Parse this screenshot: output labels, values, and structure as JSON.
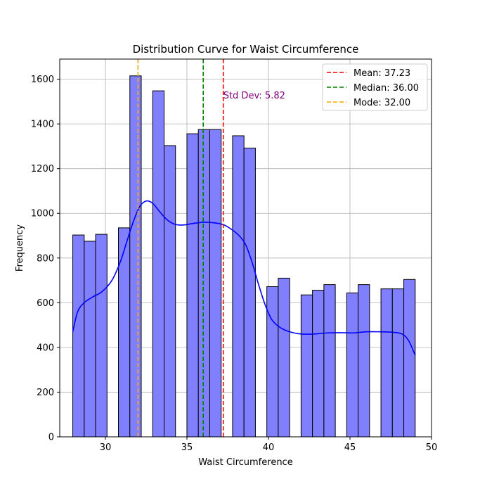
{
  "chart_data": {
    "type": "bar",
    "title": "Distribution Curve for Waist Circumference",
    "xlabel": "Waist Circumference",
    "ylabel": "Frequency",
    "xlim": [
      27.2,
      50.0
    ],
    "ylim": [
      0,
      1690
    ],
    "xticks": [
      30,
      35,
      40,
      45,
      50
    ],
    "yticks": [
      0,
      200,
      400,
      600,
      800,
      1000,
      1200,
      1400,
      1600
    ],
    "grid": true,
    "bar_color": "#8080ff",
    "bar_edge_color": "#000000",
    "bins": [
      {
        "x0": 28.0,
        "x1": 28.7,
        "value": 903
      },
      {
        "x0": 28.7,
        "x1": 29.4,
        "value": 875
      },
      {
        "x0": 29.4,
        "x1": 30.1,
        "value": 906
      },
      {
        "x0": 30.1,
        "x1": 30.8,
        "value": 0
      },
      {
        "x0": 30.8,
        "x1": 31.5,
        "value": 935
      },
      {
        "x0": 31.5,
        "x1": 32.2,
        "value": 1615
      },
      {
        "x0": 32.2,
        "x1": 32.9,
        "value": 0
      },
      {
        "x0": 32.9,
        "x1": 33.6,
        "value": 1548
      },
      {
        "x0": 33.6,
        "x1": 34.3,
        "value": 1303
      },
      {
        "x0": 34.3,
        "x1": 35.0,
        "value": 0
      },
      {
        "x0": 35.0,
        "x1": 35.7,
        "value": 1356
      },
      {
        "x0": 35.7,
        "x1": 36.4,
        "value": 1375
      },
      {
        "x0": 36.4,
        "x1": 37.1,
        "value": 1375
      },
      {
        "x0": 37.1,
        "x1": 37.8,
        "value": 0
      },
      {
        "x0": 37.8,
        "x1": 38.5,
        "value": 1347
      },
      {
        "x0": 38.5,
        "x1": 39.2,
        "value": 1292
      },
      {
        "x0": 39.2,
        "x1": 39.9,
        "value": 0
      },
      {
        "x0": 39.9,
        "x1": 40.6,
        "value": 672
      },
      {
        "x0": 40.6,
        "x1": 41.3,
        "value": 710
      },
      {
        "x0": 41.3,
        "x1": 42.0,
        "value": 0
      },
      {
        "x0": 42.0,
        "x1": 42.7,
        "value": 635
      },
      {
        "x0": 42.7,
        "x1": 43.4,
        "value": 656
      },
      {
        "x0": 43.4,
        "x1": 44.1,
        "value": 681
      },
      {
        "x0": 44.1,
        "x1": 44.8,
        "value": 0
      },
      {
        "x0": 44.8,
        "x1": 45.5,
        "value": 644
      },
      {
        "x0": 45.5,
        "x1": 46.2,
        "value": 681
      },
      {
        "x0": 46.2,
        "x1": 46.9,
        "value": 0
      },
      {
        "x0": 46.9,
        "x1": 47.6,
        "value": 662
      },
      {
        "x0": 47.6,
        "x1": 48.3,
        "value": 662
      },
      {
        "x0": 48.3,
        "x1": 49.0,
        "value": 704
      }
    ],
    "kde": {
      "name": "",
      "color": "#0000ff",
      "x": [
        28.0,
        28.3,
        28.7,
        29.2,
        29.8,
        30.4,
        30.9,
        31.3,
        31.7,
        32.1,
        32.5,
        32.9,
        33.3,
        33.8,
        34.3,
        34.8,
        35.4,
        36.0,
        36.6,
        37.2,
        37.7,
        38.2,
        38.6,
        39.0,
        39.4,
        39.8,
        40.2,
        40.7,
        41.3,
        42.0,
        42.8,
        43.6,
        44.4,
        45.2,
        46.0,
        46.8,
        47.6,
        48.2,
        48.6,
        49.0
      ],
      "y": [
        470,
        560,
        600,
        625,
        650,
        700,
        780,
        870,
        960,
        1030,
        1055,
        1045,
        1010,
        970,
        950,
        948,
        955,
        960,
        958,
        950,
        930,
        900,
        860,
        780,
        680,
        590,
        525,
        490,
        470,
        460,
        460,
        465,
        466,
        465,
        470,
        470,
        468,
        460,
        430,
        365
      ]
    },
    "vlines": [
      {
        "label": "Mean: 37.23",
        "x": 37.23,
        "color": "#ff0000"
      },
      {
        "label": "Median: 36.00",
        "x": 36.0,
        "color": "#008000"
      },
      {
        "label": "Mode: 32.00",
        "x": 32.0,
        "color": "#ffa500"
      }
    ],
    "annotations": [
      {
        "text": "Std Dev: 5.82",
        "x": 37.23,
        "y": 1530,
        "color": "#800080"
      }
    ],
    "legend_position": "top-right"
  }
}
